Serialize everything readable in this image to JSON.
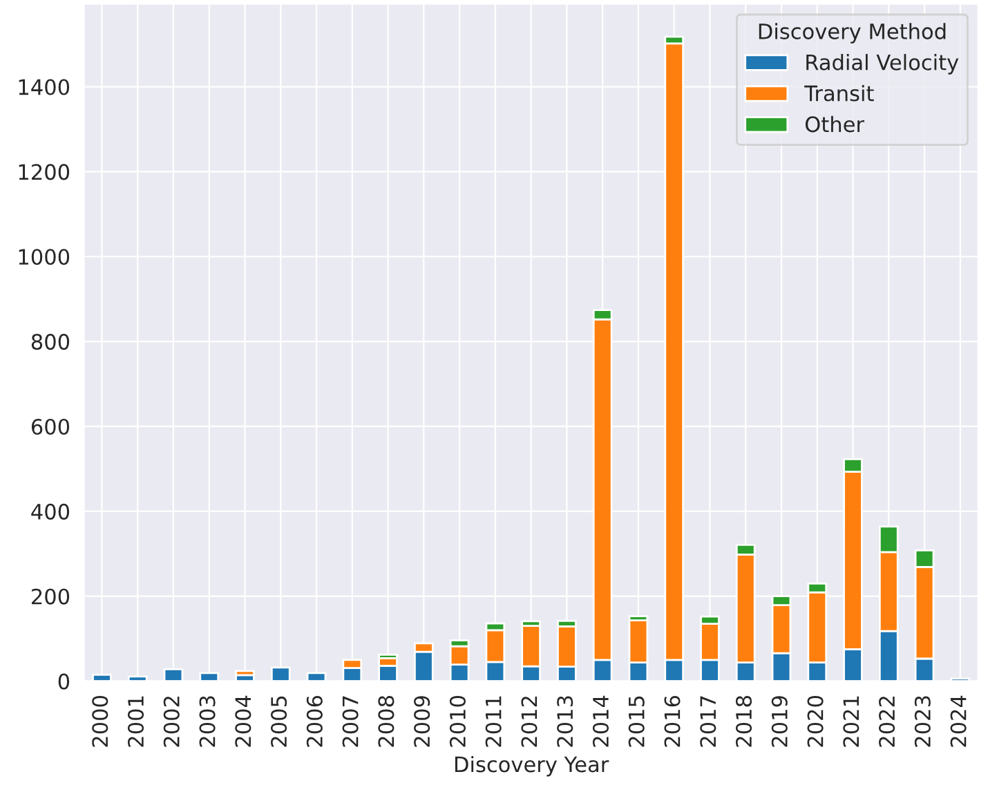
{
  "chart_data": {
    "type": "bar",
    "stacked": true,
    "xlabel": "Discovery Year",
    "legend_title": "Discovery Method",
    "legend": "top right",
    "grid": true,
    "categories": [
      "2000",
      "2001",
      "2002",
      "2003",
      "2004",
      "2005",
      "2006",
      "2007",
      "2008",
      "2009",
      "2010",
      "2011",
      "2012",
      "2013",
      "2014",
      "2015",
      "2016",
      "2017",
      "2018",
      "2019",
      "2020",
      "2021",
      "2022",
      "2023",
      "2024"
    ],
    "series": [
      {
        "name": "Radial Velocity",
        "color": "#1f77b4",
        "values": [
          15,
          11,
          28,
          19,
          14,
          32,
          19,
          31,
          36,
          69,
          39,
          45,
          35,
          34,
          50,
          44,
          50,
          50,
          44,
          66,
          44,
          75,
          118,
          53,
          6
        ]
      },
      {
        "name": "Transit",
        "color": "#ff7f0e",
        "values": [
          null,
          null,
          null,
          null,
          10,
          null,
          null,
          19,
          18,
          20,
          43,
          75,
          95,
          95,
          802,
          99,
          1452,
          85,
          254,
          113,
          165,
          418,
          186,
          216,
          null
        ]
      },
      {
        "name": "Other",
        "color": "#2ca02c",
        "values": [
          null,
          null,
          null,
          null,
          null,
          null,
          null,
          null,
          8,
          null,
          14,
          16,
          11,
          13,
          22,
          10,
          16,
          17,
          23,
          21,
          21,
          30,
          60,
          39,
          null
        ]
      }
    ],
    "ylim": [
      0,
      1595
    ],
    "yticks": [
      0,
      200,
      400,
      600,
      800,
      1000,
      1200,
      1400
    ]
  }
}
